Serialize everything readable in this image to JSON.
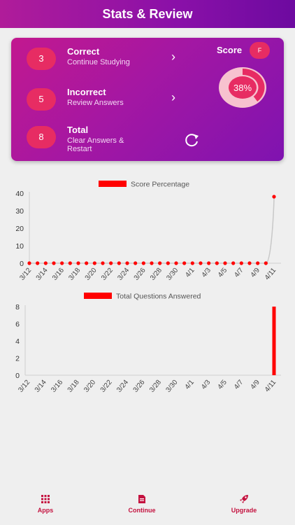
{
  "header": {
    "title": "Stats & Review"
  },
  "summary": {
    "rows": [
      {
        "count": "3",
        "title": "Correct",
        "subtitle": "Continue Studying"
      },
      {
        "count": "5",
        "title": "Incorrect",
        "subtitle": "Review Answers"
      },
      {
        "count": "8",
        "title": "Total",
        "subtitle": "Clear Answers & Restart"
      }
    ],
    "score_label": "Score",
    "grade": "F",
    "score_percent": "38%",
    "score_fraction": 0.38
  },
  "chart_data": [
    {
      "type": "line",
      "legend": "Score Percentage",
      "x": [
        "3/12",
        "3/13",
        "3/14",
        "3/15",
        "3/16",
        "3/17",
        "3/18",
        "3/19",
        "3/20",
        "3/21",
        "3/22",
        "3/23",
        "3/24",
        "3/25",
        "3/26",
        "3/27",
        "3/28",
        "3/29",
        "3/30",
        "3/31",
        "4/1",
        "4/2",
        "4/3",
        "4/4",
        "4/5",
        "4/6",
        "4/7",
        "4/8",
        "4/9",
        "4/10",
        "4/11"
      ],
      "tick_labels": [
        "3/12",
        "3/14",
        "3/16",
        "3/18",
        "3/20",
        "3/22",
        "3/24",
        "3/26",
        "3/28",
        "3/30",
        "4/1",
        "4/3",
        "4/5",
        "4/7",
        "4/9",
        "4/11"
      ],
      "values": [
        0,
        0,
        0,
        0,
        0,
        0,
        0,
        0,
        0,
        0,
        0,
        0,
        0,
        0,
        0,
        0,
        0,
        0,
        0,
        0,
        0,
        0,
        0,
        0,
        0,
        0,
        0,
        0,
        0,
        0,
        38
      ],
      "yticks": [
        0,
        10,
        20,
        30,
        40
      ],
      "ylim": [
        0,
        40
      ],
      "color": "#ff0000"
    },
    {
      "type": "bar",
      "legend": "Total Questions Answered",
      "x": [
        "3/12",
        "3/13",
        "3/14",
        "3/15",
        "3/16",
        "3/17",
        "3/18",
        "3/19",
        "3/20",
        "3/21",
        "3/22",
        "3/23",
        "3/24",
        "3/25",
        "3/26",
        "3/27",
        "3/28",
        "3/29",
        "3/30",
        "3/31",
        "4/1",
        "4/2",
        "4/3",
        "4/4",
        "4/5",
        "4/6",
        "4/7",
        "4/8",
        "4/9",
        "4/10",
        "4/11"
      ],
      "tick_labels": [
        "3/12",
        "3/14",
        "3/16",
        "3/18",
        "3/20",
        "3/22",
        "3/24",
        "3/26",
        "3/28",
        "3/30",
        "4/1",
        "4/3",
        "4/5",
        "4/7",
        "4/9",
        "4/11"
      ],
      "values": [
        0,
        0,
        0,
        0,
        0,
        0,
        0,
        0,
        0,
        0,
        0,
        0,
        0,
        0,
        0,
        0,
        0,
        0,
        0,
        0,
        0,
        0,
        0,
        0,
        0,
        0,
        0,
        0,
        0,
        0,
        8
      ],
      "yticks": [
        0,
        2,
        4,
        6,
        8
      ],
      "ylim": [
        0,
        8
      ],
      "color": "#ff0000"
    }
  ],
  "bottom_nav": {
    "apps": "Apps",
    "continue": "Continue",
    "upgrade": "Upgrade"
  },
  "colors": {
    "accent": "#e72c63",
    "header": "#8a10a8",
    "nav_label": "#c4123f"
  }
}
